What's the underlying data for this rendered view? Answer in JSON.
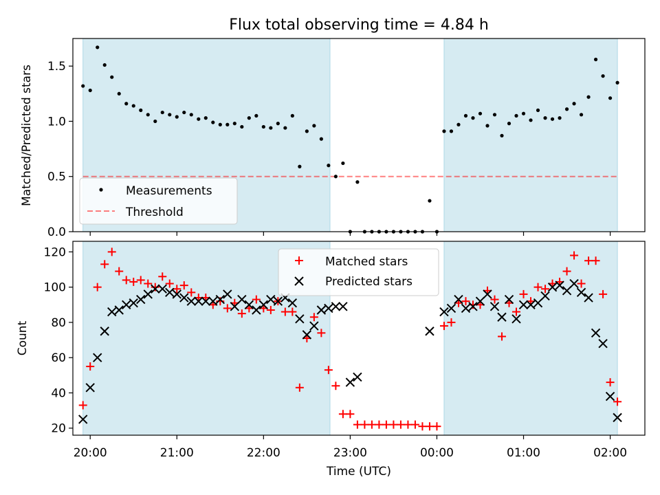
{
  "title": "Flux total observing time = 4.84 h",
  "colors": {
    "shade": "#add8e6",
    "threshold": "#ff0000",
    "measurements": "#000000",
    "matched": "#ff0000",
    "predicted": "#000000"
  },
  "chart_data": [
    {
      "type": "scatter",
      "ylabel": "Matched/Predicted stars",
      "ylim": [
        0,
        1.75
      ],
      "yticks": [
        "0.0",
        "0.5",
        "1.0",
        "1.5"
      ],
      "xlim": [
        "19:48",
        "02:24"
      ],
      "shaded_intervals": [
        [
          "19:55",
          "22:46"
        ],
        [
          "00:05",
          "02:05"
        ]
      ],
      "threshold": 0.5,
      "legend": {
        "placement": "lower-left",
        "entries": [
          "Measurements",
          "Threshold"
        ]
      },
      "series": [
        {
          "name": "Measurements",
          "marker": "dot",
          "x": [
            "19:55",
            "20:00",
            "20:05",
            "20:10",
            "20:15",
            "20:20",
            "20:25",
            "20:30",
            "20:35",
            "20:40",
            "20:45",
            "20:50",
            "20:55",
            "21:00",
            "21:05",
            "21:10",
            "21:15",
            "21:20",
            "21:25",
            "21:30",
            "21:35",
            "21:40",
            "21:45",
            "21:50",
            "21:55",
            "22:00",
            "22:05",
            "22:10",
            "22:15",
            "22:20",
            "22:25",
            "22:30",
            "22:35",
            "22:40",
            "22:45",
            "22:50",
            "22:55",
            "23:00",
            "23:05",
            "23:10",
            "23:15",
            "23:20",
            "23:25",
            "23:30",
            "23:35",
            "23:40",
            "23:45",
            "23:50",
            "23:55",
            "00:00",
            "00:05",
            "00:10",
            "00:15",
            "00:20",
            "00:25",
            "00:30",
            "00:35",
            "00:40",
            "00:45",
            "00:50",
            "00:55",
            "01:00",
            "01:05",
            "01:10",
            "01:15",
            "01:20",
            "01:25",
            "01:30",
            "01:35",
            "01:40",
            "01:45",
            "01:50",
            "01:55",
            "02:00",
            "02:05"
          ],
          "y": [
            1.32,
            1.28,
            1.67,
            1.51,
            1.4,
            1.25,
            1.16,
            1.14,
            1.1,
            1.06,
            1.0,
            1.08,
            1.06,
            1.04,
            1.08,
            1.06,
            1.02,
            1.03,
            0.99,
            0.97,
            0.97,
            0.98,
            0.95,
            1.03,
            1.05,
            0.95,
            0.94,
            0.98,
            0.94,
            1.05,
            0.59,
            0.91,
            0.96,
            0.84,
            0.6,
            0.5,
            0.62,
            0.0,
            0.45,
            0.0,
            0.0,
            0.0,
            0.0,
            0.0,
            0.0,
            0.0,
            0.0,
            0.0,
            0.28,
            0.0,
            0.91,
            0.91,
            0.97,
            1.05,
            1.03,
            1.07,
            0.96,
            1.06,
            0.87,
            0.98,
            1.05,
            1.07,
            1.01,
            1.1,
            1.03,
            1.02,
            1.03,
            1.11,
            1.16,
            1.06,
            1.22,
            1.56,
            1.41,
            1.21,
            1.35
          ]
        },
        {
          "name": "Threshold",
          "marker": "dashed-line",
          "x": [
            "19:55",
            "02:05"
          ],
          "y": [
            0.5,
            0.5
          ]
        }
      ]
    },
    {
      "type": "scatter",
      "ylabel": "Count",
      "xlabel": "Time (UTC)",
      "ylim": [
        16,
        126
      ],
      "yticks": [
        "20",
        "40",
        "60",
        "80",
        "100",
        "120"
      ],
      "xticks": [
        "20:00",
        "21:00",
        "22:00",
        "23:00",
        "00:00",
        "01:00",
        "02:00"
      ],
      "xlim": [
        "19:48",
        "02:24"
      ],
      "shaded_intervals": [
        [
          "19:55",
          "22:46"
        ],
        [
          "00:05",
          "02:05"
        ]
      ],
      "legend": {
        "placement": "top-center",
        "entries": [
          "Matched stars",
          "Predicted stars"
        ]
      },
      "series": [
        {
          "name": "Matched stars",
          "marker": "plus",
          "x": [
            "19:55",
            "20:00",
            "20:05",
            "20:10",
            "20:15",
            "20:20",
            "20:25",
            "20:30",
            "20:35",
            "20:40",
            "20:45",
            "20:50",
            "20:55",
            "21:00",
            "21:05",
            "21:10",
            "21:15",
            "21:20",
            "21:25",
            "21:30",
            "21:35",
            "21:40",
            "21:45",
            "21:50",
            "21:55",
            "22:00",
            "22:05",
            "22:10",
            "22:15",
            "22:20",
            "22:25",
            "22:30",
            "22:35",
            "22:40",
            "22:45",
            "22:50",
            "22:55",
            "23:00",
            "23:05",
            "23:10",
            "23:15",
            "23:20",
            "23:25",
            "23:30",
            "23:35",
            "23:40",
            "23:45",
            "23:50",
            "23:55",
            "00:00",
            "00:05",
            "00:10",
            "00:15",
            "00:20",
            "00:25",
            "00:30",
            "00:35",
            "00:40",
            "00:45",
            "00:50",
            "00:55",
            "01:00",
            "01:05",
            "01:10",
            "01:15",
            "01:20",
            "01:25",
            "01:30",
            "01:35",
            "01:40",
            "01:45",
            "01:50",
            "01:55",
            "02:00",
            "02:05"
          ],
          "y": [
            33,
            55,
            100,
            113,
            120,
            109,
            104,
            103,
            104,
            102,
            100,
            106,
            102,
            99,
            101,
            97,
            94,
            94,
            90,
            92,
            88,
            91,
            85,
            88,
            93,
            88,
            87,
            92,
            86,
            86,
            43,
            71,
            83,
            74,
            53,
            44,
            28,
            28,
            22,
            22,
            22,
            22,
            22,
            22,
            22,
            22,
            22,
            21,
            21,
            21,
            78,
            80,
            91,
            92,
            90,
            90,
            98,
            93,
            72,
            91,
            86,
            96,
            92,
            100,
            99,
            102,
            103,
            109,
            118,
            102,
            115,
            115,
            96,
            46,
            35
          ]
        },
        {
          "name": "Predicted stars",
          "marker": "x",
          "x": [
            "19:55",
            "20:00",
            "20:05",
            "20:10",
            "20:15",
            "20:20",
            "20:25",
            "20:30",
            "20:35",
            "20:40",
            "20:45",
            "20:50",
            "20:55",
            "21:00",
            "21:05",
            "21:10",
            "21:15",
            "21:20",
            "21:25",
            "21:30",
            "21:35",
            "21:40",
            "21:45",
            "21:50",
            "21:55",
            "22:00",
            "22:05",
            "22:10",
            "22:15",
            "22:20",
            "22:25",
            "22:30",
            "22:35",
            "22:40",
            "22:45",
            "22:50",
            "22:55",
            "23:00",
            "23:05",
            "23:55",
            "00:05",
            "00:10",
            "00:15",
            "00:20",
            "00:25",
            "00:30",
            "00:35",
            "00:40",
            "00:45",
            "00:50",
            "00:55",
            "01:00",
            "01:05",
            "01:10",
            "01:15",
            "01:20",
            "01:25",
            "01:30",
            "01:35",
            "01:40",
            "01:45",
            "01:50",
            "01:55",
            "02:00",
            "02:05"
          ],
          "y": [
            25,
            43,
            60,
            75,
            86,
            87,
            90,
            91,
            93,
            96,
            99,
            99,
            97,
            96,
            94,
            92,
            92,
            92,
            92,
            93,
            96,
            89,
            93,
            90,
            87,
            90,
            93,
            92,
            94,
            91,
            82,
            73,
            78,
            87,
            88,
            89,
            89,
            46,
            49,
            75,
            86,
            88,
            93,
            88,
            89,
            92,
            96,
            89,
            83,
            93,
            82,
            90,
            90,
            91,
            95,
            100,
            101,
            98,
            102,
            97,
            94,
            74,
            68,
            38,
            26
          ]
        }
      ]
    }
  ]
}
